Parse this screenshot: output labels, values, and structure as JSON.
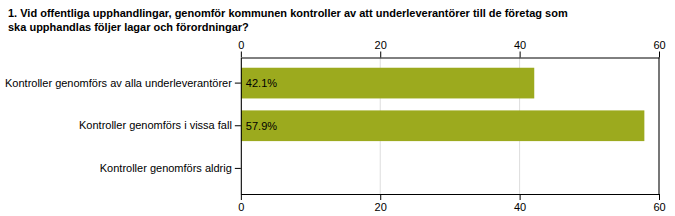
{
  "chart_data": {
    "type": "bar",
    "orientation": "horizontal",
    "title": "1. Vid offentliga upphandlingar, genomför kommunen kontroller av att underleverantörer till de företag som\nska upphandlas följer lagar och förordningar?",
    "categories": [
      "Kontroller genomförs av alla underleverantörer",
      "Kontroller genomförs i vissa fall",
      "Kontroller genomförs aldrig"
    ],
    "values": [
      42.1,
      57.9,
      0.0
    ],
    "value_labels": [
      "42.1%",
      "57.9%",
      null
    ],
    "data_labels": true,
    "color": "#9caa1e",
    "xlim": [
      0,
      60
    ],
    "xticks": [
      0,
      20,
      40,
      60
    ],
    "grid": true
  }
}
